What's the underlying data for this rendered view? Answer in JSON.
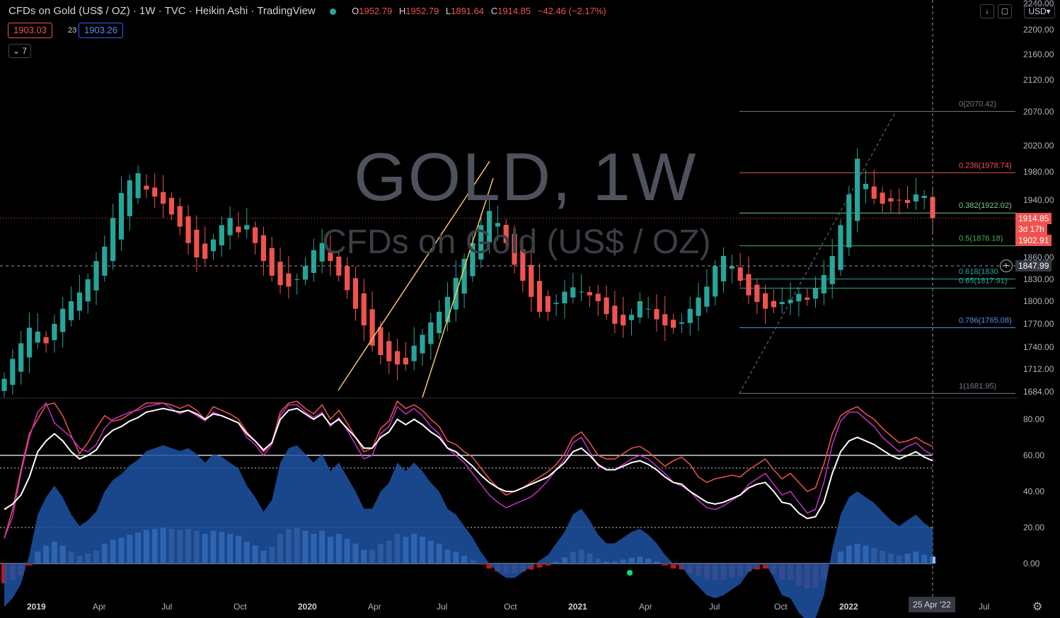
{
  "header": {
    "symbol": "CFDs on Gold (US$ / OZ)",
    "interval": "1W",
    "exchange": "TVC",
    "chart_style": "Heikin Ashi",
    "source": "TradingView",
    "open_label": "O",
    "open": "1952.79",
    "high_label": "H",
    "high": "1952.79",
    "low_label": "L",
    "low": "1891.64",
    "close_label": "C",
    "close": "1914.85",
    "change": "−42.46 (−2.17%)"
  },
  "quote": {
    "bid": "1903.03",
    "spread": "23",
    "ask": "1903.26"
  },
  "indicators_toggle": "7",
  "toolbar": {
    "download_icon": "↓",
    "screenshot_icon": "▢",
    "currency": "USD▾"
  },
  "watermark": {
    "line1": "GOLD, 1W",
    "line2": "CFDs on Gold (US$ / OZ)"
  },
  "price_tags": {
    "last_price": "1914.85",
    "countdown": "3d 17h",
    "bid_price": "1902.91",
    "crosshair_price": "1847.99"
  },
  "colors": {
    "up": "#26a69a",
    "down": "#ef5350",
    "background": "#000000",
    "fib_618": "#26a69a",
    "fib_786": "#5b8def"
  },
  "crosshair_date": "25 Apr '22",
  "chart_data": [
    {
      "type": "candlestick",
      "title": "GOLD, 1W",
      "yaxis_ticks": [
        "2240.00",
        "2200.00",
        "2160.00",
        "2120.00",
        "2070.00",
        "2020.00",
        "1980.00",
        "1940.00",
        "1860.00",
        "1830.00",
        "1800.00",
        "1770.00",
        "1740.00",
        "1712.00",
        "1684.00"
      ],
      "xaxis_ticks": [
        {
          "label": "2019",
          "bold": true
        },
        {
          "label": "Apr"
        },
        {
          "label": "Jul"
        },
        {
          "label": "Oct"
        },
        {
          "label": "2020",
          "bold": true
        },
        {
          "label": "Apr"
        },
        {
          "label": "Jul"
        },
        {
          "label": "Oct"
        },
        {
          "label": "2021",
          "bold": true
        },
        {
          "label": "Apr"
        },
        {
          "label": "Jul"
        },
        {
          "label": "Oct"
        },
        {
          "label": "2022",
          "bold": true
        },
        {
          "label": "Jul"
        }
      ],
      "candles_approx": [
        1700,
        1725,
        1745,
        1765,
        1760,
        1745,
        1770,
        1790,
        1800,
        1812,
        1830,
        1855,
        1875,
        1915,
        1950,
        1968,
        1978,
        1955,
        1945,
        1935,
        1920,
        1903,
        1880,
        1860,
        1858,
        1885,
        1905,
        1915,
        1895,
        1905,
        1880,
        1855,
        1835,
        1822,
        1820,
        1830,
        1848,
        1870,
        1880,
        1855,
        1835,
        1815,
        1790,
        1768,
        1742,
        1730,
        1722,
        1718,
        1718,
        1742,
        1756,
        1772,
        1786,
        1806,
        1832,
        1858,
        1880,
        1905,
        1925,
        1908,
        1880,
        1850,
        1828,
        1806,
        1786,
        1786,
        1798,
        1813,
        1819,
        1813,
        1808,
        1800,
        1783,
        1770,
        1768,
        1782,
        1800,
        1790,
        1776,
        1768,
        1765,
        1772,
        1790,
        1805,
        1820,
        1848,
        1862,
        1848,
        1828,
        1808,
        1799,
        1790,
        1792,
        1799,
        1802,
        1810,
        1802,
        1818,
        1836,
        1862,
        1905,
        1948,
        2000,
        1963,
        1942,
        1935,
        1938,
        1940,
        1936,
        1948,
        1946,
        1914.85
      ],
      "fibonacci": [
        {
          "level": "0",
          "value": 2070.42,
          "label": "0(2070.42)"
        },
        {
          "level": "0.236",
          "value": 1978.74,
          "label": "0.236(1978.74)"
        },
        {
          "level": "0.382",
          "value": 1922.02,
          "label": "0.382(1922.02)"
        },
        {
          "level": "0.5",
          "value": 1876.18,
          "label": "0.5(1876.18)"
        },
        {
          "level": "0.618",
          "value": 1830.33,
          "label": "0.618(1830"
        },
        {
          "level": "0.65",
          "value": 1817.91,
          "label": "0.65(1817.91)"
        },
        {
          "level": "0.786",
          "value": 1765.08,
          "label": "0.786(1765.08)"
        },
        {
          "level": "1",
          "value": 1681.95,
          "label": "1(1681.95)"
        }
      ],
      "last_price": 1914.85
    },
    {
      "type": "line",
      "title": "",
      "yaxis_ticks": [
        "80.00",
        "60.00",
        "40.00",
        "20.00",
        "0.00"
      ],
      "ylim": [
        -18,
        92
      ],
      "levels": [
        60,
        53,
        20,
        0
      ],
      "series": [
        {
          "name": "",
          "color": "#ef5350",
          "values": [
            14,
            30,
            52,
            72,
            80,
            88,
            89,
            82,
            71,
            61,
            67,
            75,
            82,
            79,
            80,
            83,
            86,
            89,
            89,
            89,
            88,
            86,
            88,
            85,
            80,
            87,
            85,
            83,
            80,
            73,
            68,
            62,
            67,
            84,
            89,
            90,
            86,
            83,
            88,
            80,
            85,
            78,
            70,
            62,
            64,
            75,
            79,
            90,
            86,
            88,
            85,
            80,
            76,
            68,
            66,
            62,
            59,
            53,
            47,
            42,
            38,
            40,
            42,
            45,
            48,
            51,
            55,
            61,
            70,
            73,
            67,
            60,
            58,
            58,
            61,
            64,
            65,
            62,
            58,
            54,
            57,
            59,
            55,
            48,
            45,
            47,
            48,
            49,
            48,
            52,
            55,
            58,
            52,
            47,
            50,
            45,
            40,
            42,
            55,
            72,
            82,
            85,
            87,
            83,
            80,
            75,
            71,
            67,
            68,
            70,
            67,
            65
          ]
        },
        {
          "name": "",
          "color": "#c531c5",
          "values": [
            14,
            26,
            50,
            70,
            84,
            89,
            78,
            74,
            70,
            64,
            62,
            66,
            75,
            80,
            82,
            84,
            85,
            87,
            88,
            89,
            86,
            83,
            85,
            82,
            79,
            84,
            82,
            80,
            78,
            70,
            66,
            60,
            66,
            82,
            88,
            88,
            84,
            81,
            84,
            76,
            81,
            74,
            66,
            58,
            60,
            72,
            76,
            87,
            83,
            86,
            82,
            76,
            72,
            64,
            60,
            56,
            50,
            44,
            38,
            34,
            31,
            33,
            35,
            37,
            41,
            46,
            52,
            58,
            67,
            70,
            62,
            54,
            52,
            52,
            55,
            58,
            60,
            58,
            54,
            50,
            45,
            43,
            40,
            35,
            31,
            30,
            32,
            35,
            38,
            44,
            47,
            50,
            44,
            38,
            40,
            34,
            28,
            30,
            45,
            66,
            79,
            84,
            84,
            80,
            76,
            70,
            66,
            62,
            65,
            67,
            63,
            60
          ]
        },
        {
          "name": "",
          "color": "#ffffff",
          "values": [
            30,
            33,
            38,
            48,
            62,
            68,
            72,
            68,
            62,
            58,
            60,
            63,
            70,
            74,
            76,
            79,
            81,
            84,
            85,
            86,
            85,
            84,
            85,
            83,
            80,
            83,
            82,
            80,
            78,
            72,
            68,
            63,
            67,
            80,
            85,
            86,
            83,
            80,
            83,
            77,
            80,
            75,
            70,
            64,
            64,
            70,
            73,
            80,
            77,
            80,
            77,
            73,
            70,
            64,
            62,
            58,
            54,
            49,
            45,
            42,
            40,
            40,
            42,
            44,
            46,
            48,
            52,
            56,
            62,
            64,
            60,
            55,
            52,
            52,
            54,
            56,
            57,
            55,
            52,
            48,
            45,
            44,
            40,
            37,
            34,
            33,
            34,
            36,
            38,
            42,
            44,
            45,
            40,
            34,
            33,
            28,
            25,
            26,
            34,
            50,
            62,
            68,
            70,
            68,
            66,
            63,
            60,
            58,
            60,
            62,
            59,
            57
          ]
        }
      ]
    }
  ]
}
